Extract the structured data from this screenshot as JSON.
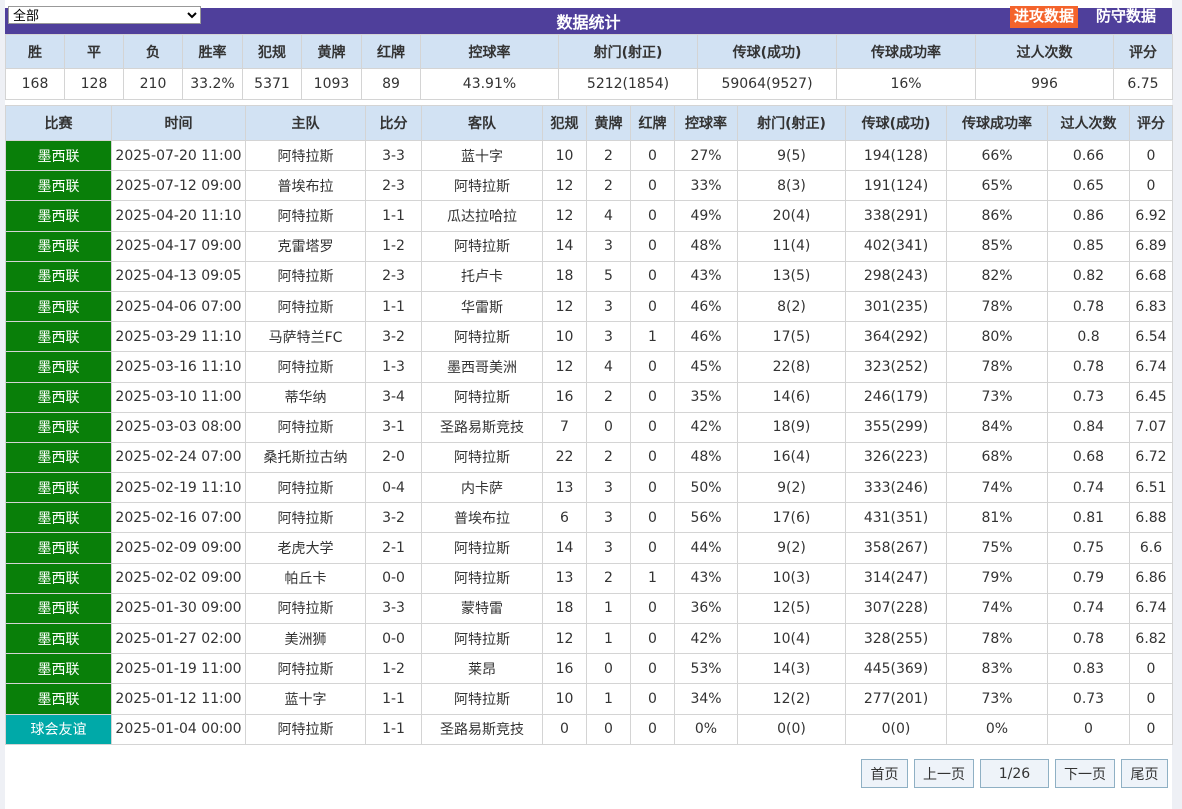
{
  "filter": {
    "selected": "全部"
  },
  "header": {
    "title": "数据统计",
    "tab_attack": "进攻数据",
    "tab_defense": "防守数据"
  },
  "summary": {
    "headers": [
      "胜",
      "平",
      "负",
      "胜率",
      "犯规",
      "黄牌",
      "红牌",
      "控球率",
      "射门(射正)",
      "传球(成功)",
      "传球成功率",
      "过人次数",
      "评分"
    ],
    "values": [
      "168",
      "128",
      "210",
      "33.2%",
      "5371",
      "1093",
      "89",
      "43.91%",
      "5212(1854)",
      "59064(9527)",
      "16%",
      "996",
      "6.75"
    ]
  },
  "matches": {
    "headers": [
      "比赛",
      "时间",
      "主队",
      "比分",
      "客队",
      "犯规",
      "黄牌",
      "红牌",
      "控球率",
      "射门(射正)",
      "传球(成功)",
      "传球成功率",
      "过人次数",
      "评分"
    ],
    "rows": [
      [
        "墨西联",
        "2025-07-20 11:00",
        "阿特拉斯",
        "3-3",
        "蓝十字",
        "10",
        "2",
        "0",
        "27%",
        "9(5)",
        "194(128)",
        "66%",
        "0.66",
        "0"
      ],
      [
        "墨西联",
        "2025-07-12 09:00",
        "普埃布拉",
        "2-3",
        "阿特拉斯",
        "12",
        "2",
        "0",
        "33%",
        "8(3)",
        "191(124)",
        "65%",
        "0.65",
        "0"
      ],
      [
        "墨西联",
        "2025-04-20 11:10",
        "阿特拉斯",
        "1-1",
        "瓜达拉哈拉",
        "12",
        "4",
        "0",
        "49%",
        "20(4)",
        "338(291)",
        "86%",
        "0.86",
        "6.92"
      ],
      [
        "墨西联",
        "2025-04-17 09:00",
        "克雷塔罗",
        "1-2",
        "阿特拉斯",
        "14",
        "3",
        "0",
        "48%",
        "11(4)",
        "402(341)",
        "85%",
        "0.85",
        "6.89"
      ],
      [
        "墨西联",
        "2025-04-13 09:05",
        "阿特拉斯",
        "2-3",
        "托卢卡",
        "18",
        "5",
        "0",
        "43%",
        "13(5)",
        "298(243)",
        "82%",
        "0.82",
        "6.68"
      ],
      [
        "墨西联",
        "2025-04-06 07:00",
        "阿特拉斯",
        "1-1",
        "华雷斯",
        "12",
        "3",
        "0",
        "46%",
        "8(2)",
        "301(235)",
        "78%",
        "0.78",
        "6.83"
      ],
      [
        "墨西联",
        "2025-03-29 11:10",
        "马萨特兰FC",
        "3-2",
        "阿特拉斯",
        "10",
        "3",
        "1",
        "46%",
        "17(5)",
        "364(292)",
        "80%",
        "0.8",
        "6.54"
      ],
      [
        "墨西联",
        "2025-03-16 11:10",
        "阿特拉斯",
        "1-3",
        "墨西哥美洲",
        "12",
        "4",
        "0",
        "45%",
        "22(8)",
        "323(252)",
        "78%",
        "0.78",
        "6.74"
      ],
      [
        "墨西联",
        "2025-03-10 11:00",
        "蒂华纳",
        "3-4",
        "阿特拉斯",
        "16",
        "2",
        "0",
        "35%",
        "14(6)",
        "246(179)",
        "73%",
        "0.73",
        "6.45"
      ],
      [
        "墨西联",
        "2025-03-03 08:00",
        "阿特拉斯",
        "3-1",
        "圣路易斯竞技",
        "7",
        "0",
        "0",
        "42%",
        "18(9)",
        "355(299)",
        "84%",
        "0.84",
        "7.07"
      ],
      [
        "墨西联",
        "2025-02-24 07:00",
        "桑托斯拉古纳",
        "2-0",
        "阿特拉斯",
        "22",
        "2",
        "0",
        "48%",
        "16(4)",
        "326(223)",
        "68%",
        "0.68",
        "6.72"
      ],
      [
        "墨西联",
        "2025-02-19 11:10",
        "阿特拉斯",
        "0-4",
        "内卡萨",
        "13",
        "3",
        "0",
        "50%",
        "9(2)",
        "333(246)",
        "74%",
        "0.74",
        "6.51"
      ],
      [
        "墨西联",
        "2025-02-16 07:00",
        "阿特拉斯",
        "3-2",
        "普埃布拉",
        "6",
        "3",
        "0",
        "56%",
        "17(6)",
        "431(351)",
        "81%",
        "0.81",
        "6.88"
      ],
      [
        "墨西联",
        "2025-02-09 09:00",
        "老虎大学",
        "2-1",
        "阿特拉斯",
        "14",
        "3",
        "0",
        "44%",
        "9(2)",
        "358(267)",
        "75%",
        "0.75",
        "6.6"
      ],
      [
        "墨西联",
        "2025-02-02 09:00",
        "帕丘卡",
        "0-0",
        "阿特拉斯",
        "13",
        "2",
        "1",
        "43%",
        "10(3)",
        "314(247)",
        "79%",
        "0.79",
        "6.86"
      ],
      [
        "墨西联",
        "2025-01-30 09:00",
        "阿特拉斯",
        "3-3",
        "蒙特雷",
        "18",
        "1",
        "0",
        "36%",
        "12(5)",
        "307(228)",
        "74%",
        "0.74",
        "6.74"
      ],
      [
        "墨西联",
        "2025-01-27 02:00",
        "美洲狮",
        "0-0",
        "阿特拉斯",
        "12",
        "1",
        "0",
        "42%",
        "10(4)",
        "328(255)",
        "78%",
        "0.78",
        "6.82"
      ],
      [
        "墨西联",
        "2025-01-19 11:00",
        "阿特拉斯",
        "1-2",
        "莱昂",
        "16",
        "0",
        "0",
        "53%",
        "14(3)",
        "445(369)",
        "83%",
        "0.83",
        "0"
      ],
      [
        "墨西联",
        "2025-01-12 11:00",
        "蓝十字",
        "1-1",
        "阿特拉斯",
        "10",
        "1",
        "0",
        "34%",
        "12(2)",
        "277(201)",
        "73%",
        "0.73",
        "0"
      ],
      [
        "球会友谊",
        "2025-01-04 00:00",
        "阿特拉斯",
        "1-1",
        "圣路易斯竞技",
        "0",
        "0",
        "0",
        "0%",
        "0(0)",
        "0(0)",
        "0%",
        "0",
        "0"
      ]
    ]
  },
  "pagination": {
    "first": "首页",
    "prev": "上一页",
    "page": "1/26",
    "next": "下一页",
    "last": "尾页"
  },
  "colors": {
    "header_bar": "#4f3f9b",
    "attack_tab": "#f4632b",
    "league": "#097f09",
    "friendly": "#00a9a8",
    "table_header": "#d2e2f3"
  }
}
